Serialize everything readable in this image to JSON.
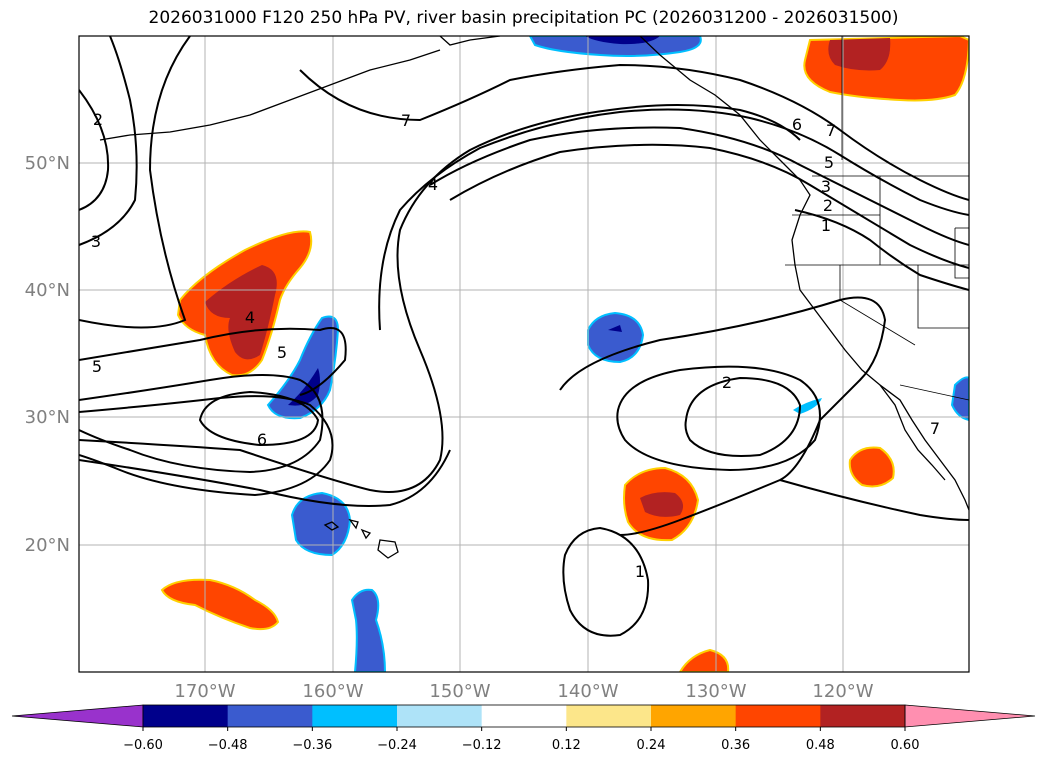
{
  "title": "2026031000 F120 250 hPa PV, river basin precipitation PC (2026031200 - 2026031500)",
  "map": {
    "lat_labels": [
      "50°N",
      "40°N",
      "30°N",
      "20°N"
    ],
    "lon_labels": [
      "170°W",
      "160°W",
      "150°W",
      "140°W",
      "130°W",
      "120°W"
    ],
    "label_color": "#808080",
    "contour_labels": [
      "2",
      "3",
      "5",
      "4",
      "5",
      "6",
      "7",
      "4",
      "7",
      "6",
      "5",
      "3",
      "2",
      "1",
      "2",
      "1",
      "7"
    ]
  },
  "colorbar": {
    "tick_labels": [
      "−0.60",
      "−0.48",
      "−0.36",
      "−0.24",
      "−0.12",
      "0.12",
      "0.24",
      "0.36",
      "0.48",
      "0.60"
    ],
    "colors": [
      "#9932cc",
      "#00008b",
      "#3a5bcf",
      "#00bfff",
      "#aee3f8",
      "#ffffff",
      "#fce68a",
      "#ffa500",
      "#ff4500",
      "#b22222",
      "#ff8fb0"
    ]
  }
}
